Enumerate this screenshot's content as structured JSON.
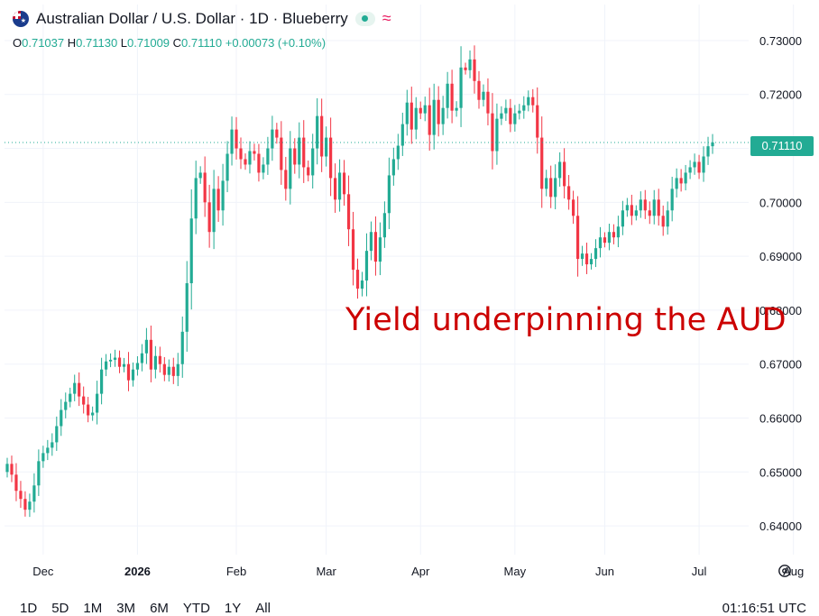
{
  "header": {
    "title": "Australian Dollar / U.S. Dollar · 1D · Blueberry",
    "flag_icon": "australia-flag-icon",
    "status_icon": "market-open-dot-icon",
    "indicator_icon": "wave-icon"
  },
  "ohlc": {
    "o_label": "O",
    "o": "0.71037",
    "h_label": "H",
    "h": "0.71130",
    "l_label": "L",
    "l": "0.71009",
    "c_label": "C",
    "c": "0.71110",
    "change": "+0.00073 (+0.10%)"
  },
  "annotation": "Yield underpinning the AUD",
  "last_price": "0.71110",
  "range_buttons": [
    "1D",
    "5D",
    "1M",
    "3M",
    "6M",
    "YTD",
    "1Y",
    "All"
  ],
  "clock": "01:16:51 UTC",
  "colors": {
    "up": "#22ab94",
    "down": "#f23645",
    "annotation": "#cc0000"
  },
  "chart_data": {
    "type": "candlestick",
    "title": "Australian Dollar / U.S. Dollar · 1D · Blueberry",
    "y_ticks": [
      "0.73000",
      "0.72000",
      "0.71000",
      "0.70000",
      "0.69000",
      "0.68000",
      "0.67000",
      "0.66000",
      "0.65000",
      "0.64000"
    ],
    "ylim": [
      0.6355,
      0.7325
    ],
    "x_labels": [
      {
        "label": "Dec",
        "index": 8
      },
      {
        "label": "2026",
        "index": 29
      },
      {
        "label": "Feb",
        "index": 51
      },
      {
        "label": "Mar",
        "index": 71
      },
      {
        "label": "Apr",
        "index": 92
      },
      {
        "label": "May",
        "index": 113
      },
      {
        "label": "Jun",
        "index": 133
      },
      {
        "label": "Jul",
        "index": 154
      },
      {
        "label": "Aug",
        "index": 175
      }
    ],
    "grid": true,
    "last_price": 0.7111,
    "closes": [
      0.6515,
      0.6495,
      0.6465,
      0.645,
      0.643,
      0.6445,
      0.6475,
      0.652,
      0.6535,
      0.6545,
      0.6555,
      0.6585,
      0.6615,
      0.663,
      0.6645,
      0.6665,
      0.664,
      0.6625,
      0.6605,
      0.661,
      0.6645,
      0.669,
      0.6705,
      0.6708,
      0.6712,
      0.6695,
      0.67,
      0.667,
      0.669,
      0.6702,
      0.672,
      0.6745,
      0.669,
      0.6715,
      0.67,
      0.668,
      0.6695,
      0.6678,
      0.67,
      0.676,
      0.685,
      0.697,
      0.7045,
      0.7055,
      0.7,
      0.6945,
      0.7025,
      0.6985,
      0.704,
      0.709,
      0.7135,
      0.71,
      0.708,
      0.707,
      0.7095,
      0.709,
      0.7055,
      0.707,
      0.71,
      0.7135,
      0.712,
      0.706,
      0.7025,
      0.71,
      0.707,
      0.712,
      0.7065,
      0.705,
      0.71,
      0.716,
      0.7085,
      0.712,
      0.7045,
      0.7005,
      0.7055,
      0.7015,
      0.695,
      0.6875,
      0.684,
      0.6855,
      0.691,
      0.6945,
      0.689,
      0.6935,
      0.698,
      0.705,
      0.708,
      0.7105,
      0.7145,
      0.7185,
      0.7135,
      0.7175,
      0.7165,
      0.718,
      0.7125,
      0.719,
      0.7145,
      0.7175,
      0.722,
      0.717,
      0.7175,
      0.725,
      0.7245,
      0.7265,
      0.7225,
      0.719,
      0.7205,
      0.7165,
      0.7095,
      0.7155,
      0.7165,
      0.7175,
      0.7145,
      0.7165,
      0.717,
      0.718,
      0.7195,
      0.718,
      0.712,
      0.7025,
      0.7045,
      0.701,
      0.7045,
      0.7075,
      0.703,
      0.7005,
      0.6975,
      0.6895,
      0.6905,
      0.6885,
      0.6895,
      0.6915,
      0.6935,
      0.6925,
      0.6945,
      0.6935,
      0.6955,
      0.6985,
      0.6995,
      0.6975,
      0.6985,
      0.7005,
      0.6985,
      0.6975,
      0.7005,
      0.6975,
      0.6955,
      0.6985,
      0.7025,
      0.7045,
      0.7035,
      0.7055,
      0.7065,
      0.7075,
      0.7055,
      0.7085,
      0.7104,
      0.7111
    ]
  }
}
